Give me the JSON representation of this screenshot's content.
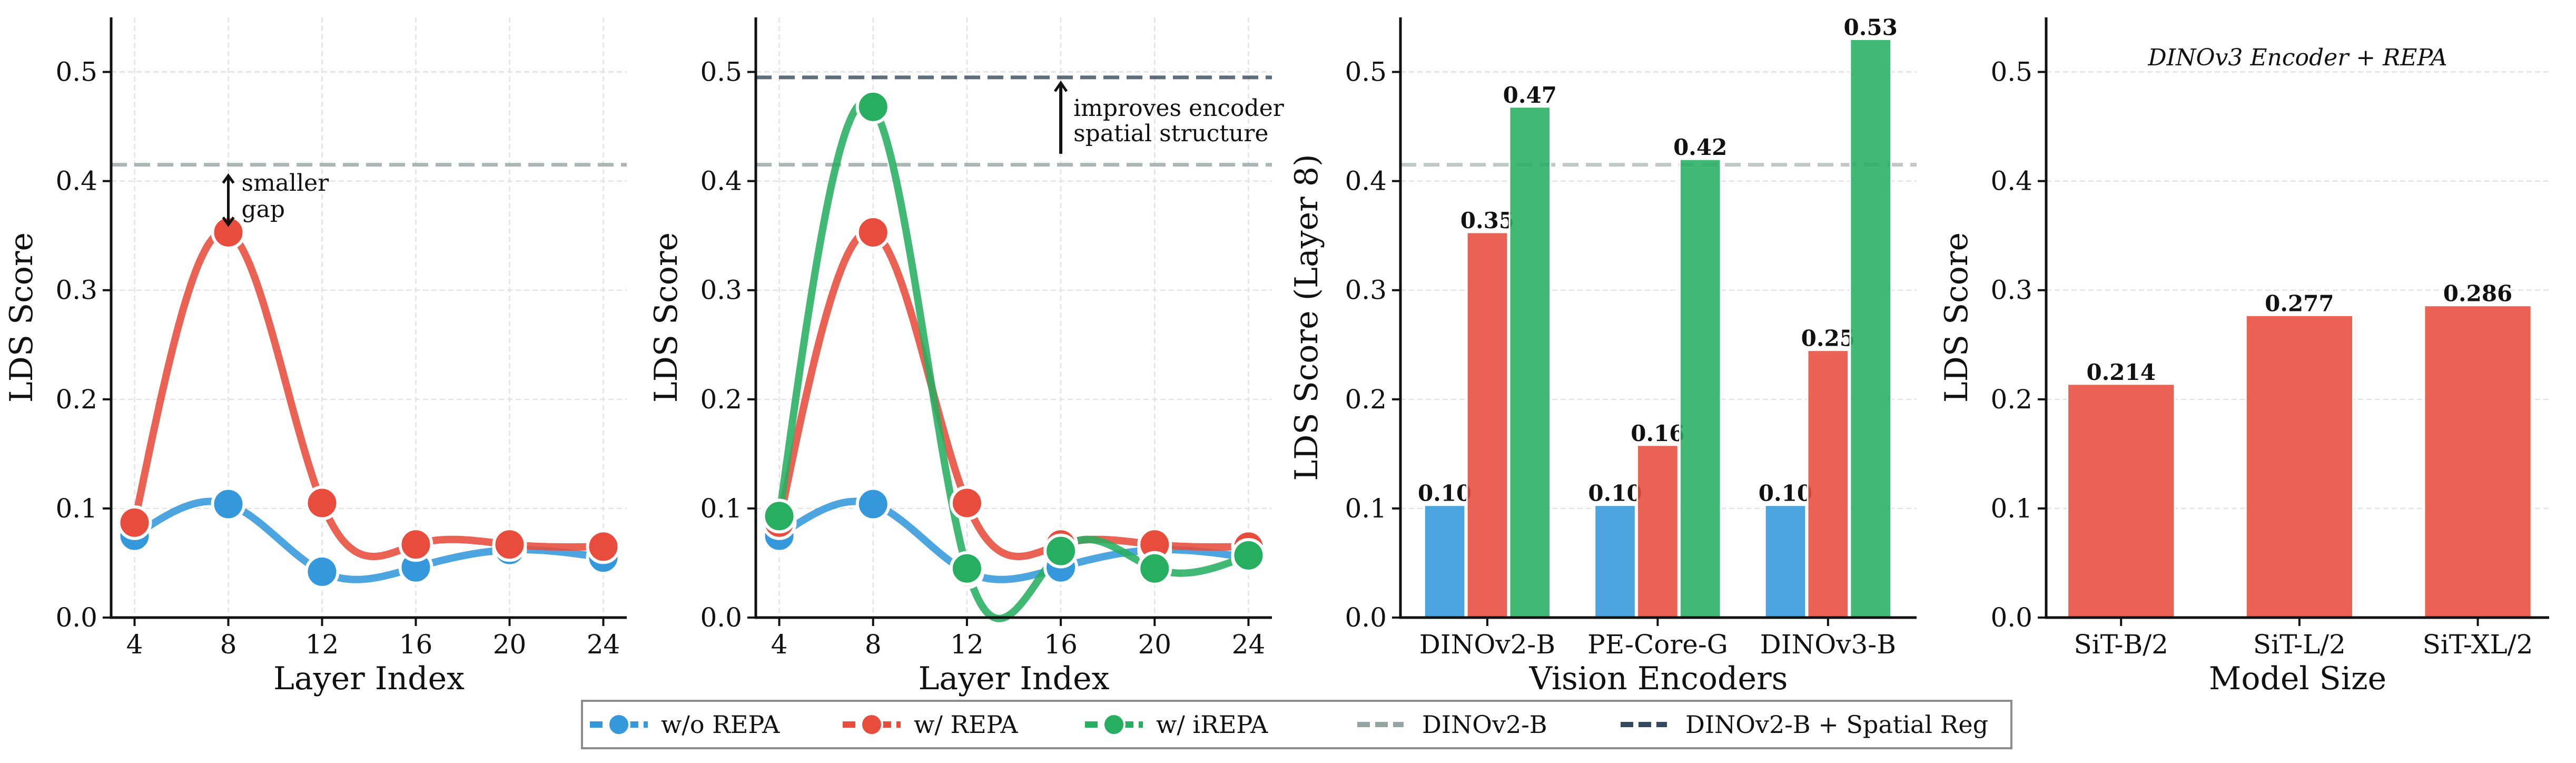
{
  "colors": {
    "blue": "#3498db",
    "red": "#e74c3c",
    "green": "#27ae60",
    "baseline": "#95a5a6",
    "spatial_reg": "#34495e"
  },
  "legend": {
    "placement": "bottom-center",
    "items": [
      {
        "label": "w/o REPA",
        "color": "#3498db",
        "style": "line-marker"
      },
      {
        "label": "w/ REPA",
        "color": "#e74c3c",
        "style": "line-marker"
      },
      {
        "label": "w/ iREPA",
        "color": "#27ae60",
        "style": "line-marker"
      },
      {
        "label": "DINOv2-B",
        "color": "#95a5a6",
        "style": "dashed"
      },
      {
        "label": "DINOv2-B + Spatial Reg",
        "color": "#34495e",
        "style": "dashed"
      }
    ]
  },
  "chart_data": [
    {
      "type": "line",
      "xlabel": "Layer Index",
      "ylabel": "LDS Score",
      "x": [
        4,
        8,
        12,
        16,
        20,
        24
      ],
      "xlim": [
        3,
        25
      ],
      "ylim": [
        0,
        0.55
      ],
      "yticks": [
        "0.0",
        "0.1",
        "0.2",
        "0.3",
        "0.4",
        "0.5"
      ],
      "xticks": [
        "4",
        "8",
        "12",
        "16",
        "20",
        "24"
      ],
      "grid": true,
      "series": [
        {
          "name": "w/o REPA",
          "color": "#3498db",
          "values": [
            0.075,
            0.104,
            0.042,
            0.046,
            0.062,
            0.055
          ]
        },
        {
          "name": "w/ REPA",
          "color": "#e74c3c",
          "values": [
            0.087,
            0.353,
            0.105,
            0.067,
            0.067,
            0.065
          ]
        }
      ],
      "hlines": [
        {
          "name": "DINOv2-B",
          "y": 0.415,
          "color": "#95a5a6"
        }
      ],
      "annotations": {
        "lines": [
          "smaller",
          "gap"
        ],
        "arrow": "double",
        "x": 8,
        "y_from": 0.36,
        "y_to": 0.405
      }
    },
    {
      "type": "line",
      "xlabel": "Layer Index",
      "ylabel": "LDS Score",
      "x": [
        4,
        8,
        12,
        16,
        20,
        24
      ],
      "xlim": [
        3,
        25
      ],
      "ylim": [
        0,
        0.55
      ],
      "yticks": [
        "0.0",
        "0.1",
        "0.2",
        "0.3",
        "0.4",
        "0.5"
      ],
      "xticks": [
        "4",
        "8",
        "12",
        "16",
        "20",
        "24"
      ],
      "grid": true,
      "series": [
        {
          "name": "w/o REPA",
          "color": "#3498db",
          "values": [
            0.075,
            0.104,
            0.042,
            0.046,
            0.062,
            0.055
          ]
        },
        {
          "name": "w/ REPA",
          "color": "#e74c3c",
          "values": [
            0.087,
            0.353,
            0.105,
            0.067,
            0.067,
            0.065
          ]
        },
        {
          "name": "w/ iREPA",
          "color": "#27ae60",
          "values": [
            0.093,
            0.468,
            0.045,
            0.061,
            0.045,
            0.057
          ]
        }
      ],
      "hlines": [
        {
          "name": "DINOv2-B + Spatial Reg",
          "y": 0.495,
          "color": "#34495e"
        },
        {
          "name": "DINOv2-B",
          "y": 0.415,
          "color": "#95a5a6"
        }
      ],
      "annotations": {
        "lines": [
          "improves encoder",
          "spatial structure"
        ],
        "arrow": "up",
        "x": 16,
        "y_from": 0.425,
        "y_to": 0.49
      }
    },
    {
      "type": "bar",
      "xlabel": "Vision Encoders",
      "ylabel": "LDS Score (Layer 8)",
      "categories": [
        "DINOv2-B",
        "PE-Core-G",
        "DINOv3-B"
      ],
      "ylim": [
        0,
        0.55
      ],
      "yticks": [
        "0.0",
        "0.1",
        "0.2",
        "0.3",
        "0.4",
        "0.5"
      ],
      "grid": true,
      "series": [
        {
          "name": "w/o REPA",
          "color": "#3498db",
          "values": [
            0.103,
            0.103,
            0.103
          ],
          "labels": [
            "0.10",
            "0.10",
            "0.10"
          ]
        },
        {
          "name": "w/ REPA",
          "color": "#e74c3c",
          "values": [
            0.353,
            0.158,
            0.245
          ],
          "labels": [
            "0.35",
            "0.16",
            "0.25"
          ]
        },
        {
          "name": "w/ iREPA",
          "color": "#27ae60",
          "values": [
            0.468,
            0.42,
            0.53
          ],
          "labels": [
            "0.47",
            "0.42",
            "0.53"
          ]
        }
      ],
      "hlines": [
        {
          "name": "DINOv2-B",
          "y": 0.415,
          "color": "#95a5a6"
        }
      ]
    },
    {
      "type": "bar",
      "xlabel": "Model Size",
      "ylabel": "LDS Score",
      "title": "DINOv3 Encoder + REPA",
      "categories": [
        "SiT-B/2",
        "SiT-L/2",
        "SiT-XL/2"
      ],
      "ylim": [
        0,
        0.55
      ],
      "yticks": [
        "0.0",
        "0.1",
        "0.2",
        "0.3",
        "0.4",
        "0.5"
      ],
      "grid": true,
      "series": [
        {
          "color": "#e74c3c",
          "values": [
            0.214,
            0.277,
            0.286
          ],
          "labels": [
            "0.214",
            "0.277",
            "0.286"
          ]
        }
      ]
    }
  ]
}
